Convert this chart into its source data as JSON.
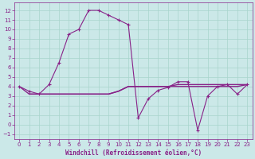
{
  "xlabel": "Windchill (Refroidissement éolien,°C)",
  "background_color": "#cbe8e8",
  "grid_color": "#a8d4cc",
  "line_color": "#882288",
  "ylim": [
    -1.5,
    12.8
  ],
  "xlim": [
    -0.5,
    23.5
  ],
  "yticks": [
    -1,
    0,
    1,
    2,
    3,
    4,
    5,
    6,
    7,
    8,
    9,
    10,
    11,
    12
  ],
  "xticks": [
    0,
    1,
    2,
    3,
    4,
    5,
    6,
    7,
    8,
    9,
    10,
    11,
    12,
    13,
    14,
    15,
    16,
    17,
    18,
    19,
    20,
    21,
    22,
    23
  ],
  "line1_x": [
    0,
    1,
    2,
    3,
    4,
    5,
    6,
    7,
    8,
    9,
    10,
    11,
    12,
    13,
    14,
    15,
    16,
    17,
    18,
    19,
    20,
    21,
    22,
    23
  ],
  "line1_y": [
    4.0,
    3.5,
    3.2,
    4.2,
    6.5,
    9.5,
    10.0,
    12.0,
    12.0,
    11.5,
    11.0,
    10.5,
    0.7,
    2.7,
    3.6,
    3.9,
    4.5,
    4.5,
    -0.6,
    3.0,
    4.0,
    4.2,
    3.2,
    4.2
  ],
  "line2_x": [
    0,
    1,
    2,
    3,
    4,
    5,
    6,
    7,
    8,
    9,
    10,
    11,
    12,
    13,
    14,
    15,
    16,
    17,
    18,
    19,
    20,
    21,
    22,
    23
  ],
  "line2_y": [
    4.0,
    3.2,
    3.2,
    3.2,
    3.2,
    3.2,
    3.2,
    3.2,
    3.2,
    3.2,
    3.5,
    4.0,
    4.0,
    4.0,
    4.0,
    4.0,
    4.0,
    4.0,
    4.0,
    4.0,
    4.0,
    4.0,
    4.0,
    4.2
  ],
  "line3_x": [
    1,
    2,
    3,
    4,
    5,
    6,
    7,
    8,
    9,
    10,
    11,
    12,
    13,
    14,
    15,
    16,
    17,
    18,
    19,
    20,
    21,
    22,
    23
  ],
  "line3_y": [
    3.2,
    3.2,
    3.2,
    3.2,
    3.2,
    3.2,
    3.2,
    3.2,
    3.2,
    3.5,
    4.0,
    4.0,
    4.0,
    4.0,
    4.0,
    4.2,
    4.2,
    4.2,
    4.2,
    4.2,
    4.2,
    4.2,
    4.2
  ],
  "marker": "+"
}
